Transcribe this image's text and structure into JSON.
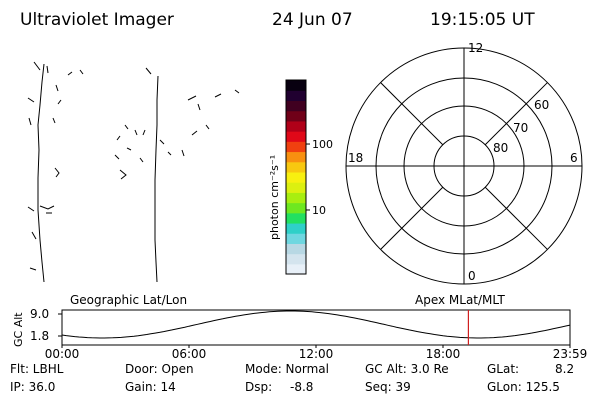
{
  "header": {
    "title": "Ultraviolet Imager",
    "date": "24 Jun 07",
    "time": "19:15:05 UT"
  },
  "colorbar": {
    "axis_label": "photon cm⁻²s⁻¹",
    "ticks": [
      {
        "label": "100",
        "frac": 0.67
      },
      {
        "label": "10",
        "frac": 0.33
      }
    ],
    "colors": [
      "#e8f0f8",
      "#d4e4ee",
      "#b8d8e4",
      "#6fd7e0",
      "#2fd0c8",
      "#22e060",
      "#6ee820",
      "#a8ee10",
      "#dcf010",
      "#f8f010",
      "#f8c810",
      "#f89010",
      "#f04010",
      "#e00818",
      "#b00018",
      "#700018",
      "#400020",
      "#200030",
      "#080010"
    ]
  },
  "polar": {
    "mlt_labels": [
      {
        "label": "12",
        "pos": "top"
      },
      {
        "label": "18",
        "pos": "left"
      },
      {
        "label": "6",
        "pos": "right"
      },
      {
        "label": "0",
        "pos": "bottom"
      }
    ],
    "lat_labels": [
      "60",
      "70",
      "80"
    ]
  },
  "timeline": {
    "left_label": "Geographic Lat/Lon",
    "right_label": "Apex MLat/MLT",
    "y_axis_label": "GC Alt",
    "y_ticks": [
      "9.0",
      "1.8"
    ],
    "x_ticks": [
      "00:00",
      "06:00",
      "12:00",
      "18:00",
      "23:59"
    ],
    "current_marker_color": "#d02020",
    "current_time_frac": 0.8
  },
  "status": {
    "flt": "Flt: LBHL",
    "ip": "IP: 36.0",
    "door": "Door: Open",
    "gain": "Gain: 14",
    "mode": "Mode: Normal",
    "dsp": "Dsp:",
    "dsp_value": "-8.8",
    "gc_alt": "GC Alt: 3.0 Re",
    "seq": "Seq: 39",
    "glat": "GLat:",
    "glat_value": "8.2",
    "glon": "GLon: 125.5"
  }
}
